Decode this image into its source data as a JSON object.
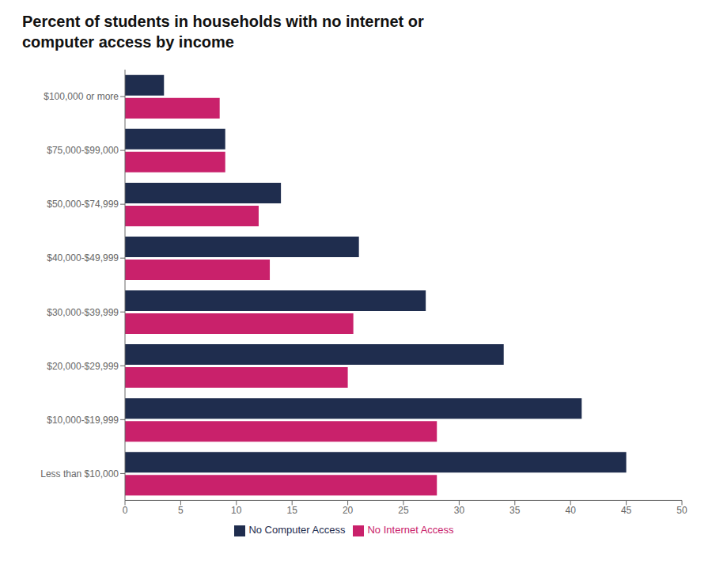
{
  "chart_data": {
    "type": "bar",
    "orientation": "horizontal",
    "title": "Percent of students in households with no internet or\ncomputer access by income",
    "categories": [
      "Less than $10,000",
      "$10,000-$19,999",
      "$20,000-$29,999",
      "$30,000-$39,999",
      "$40,000-$49,999",
      "$50,000-$74,999",
      "$75,000-$99,000",
      "$100,000 or more"
    ],
    "series": [
      {
        "name": "No Computer Access",
        "color": "#1f2d4e",
        "values": [
          45,
          41,
          34,
          27,
          21,
          14,
          9,
          3.5
        ]
      },
      {
        "name": "No Internet Access",
        "color": "#c9216b",
        "values": [
          28,
          28,
          20,
          20.5,
          13,
          12,
          9,
          8.5
        ]
      }
    ],
    "xlim": [
      0,
      50
    ],
    "xticks": [
      0,
      5,
      10,
      15,
      20,
      25,
      30,
      35,
      40,
      45,
      50
    ],
    "grid": false,
    "legend": "bottom"
  }
}
